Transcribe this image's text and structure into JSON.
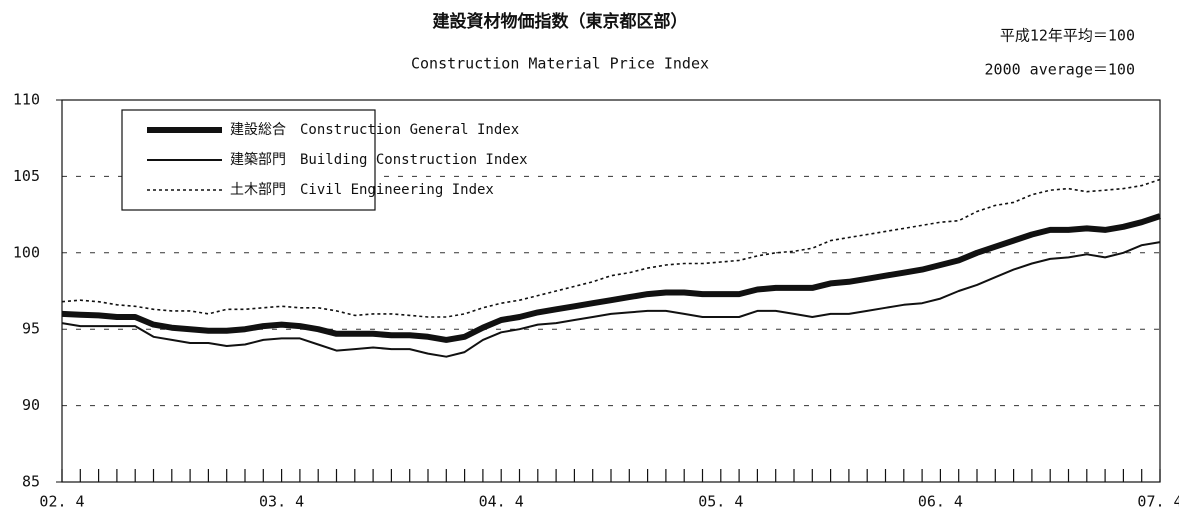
{
  "chart_data": {
    "type": "line",
    "title": "建設資材物価指数（東京都区部）",
    "subtitle": "Construction Material Price Index",
    "annotations": [
      "平成12年平均＝100",
      "2000 average＝100"
    ],
    "categories": [
      "02. 4",
      null,
      null,
      null,
      null,
      null,
      null,
      null,
      null,
      null,
      null,
      null,
      "03. 4",
      null,
      null,
      null,
      null,
      null,
      null,
      null,
      null,
      null,
      null,
      null,
      "04. 4",
      null,
      null,
      null,
      null,
      null,
      null,
      null,
      null,
      null,
      null,
      null,
      "05. 4",
      null,
      null,
      null,
      null,
      null,
      null,
      null,
      null,
      null,
      null,
      null,
      "06. 4",
      null,
      null,
      null,
      null,
      null,
      null,
      null,
      null,
      null,
      null,
      null,
      "07. 4"
    ],
    "series": [
      {
        "name": "建設総合　Construction General Index",
        "color": "#111111",
        "style": "thick",
        "values": [
          96.0,
          95.95,
          95.9,
          95.8,
          95.8,
          95.3,
          95.1,
          95.0,
          94.9,
          94.9,
          95.0,
          95.2,
          95.3,
          95.2,
          95.0,
          94.7,
          94.7,
          94.7,
          94.6,
          94.6,
          94.5,
          94.3,
          94.5,
          95.1,
          95.6,
          95.8,
          96.1,
          96.3,
          96.5,
          96.7,
          96.9,
          97.1,
          97.3,
          97.4,
          97.4,
          97.3,
          97.3,
          97.3,
          97.6,
          97.7,
          97.7,
          97.7,
          98.0,
          98.1,
          98.3,
          98.5,
          98.7,
          98.9,
          99.2,
          99.5,
          100.0,
          100.4,
          100.8,
          101.2,
          101.5,
          101.5,
          101.6,
          101.5,
          101.7,
          102.0,
          102.4
        ]
      },
      {
        "name": "建築部門　Building Construction Index",
        "color": "#111111",
        "style": "thin",
        "values": [
          95.4,
          95.2,
          95.2,
          95.2,
          95.2,
          94.5,
          94.3,
          94.1,
          94.1,
          93.9,
          94.0,
          94.3,
          94.4,
          94.4,
          94.0,
          93.6,
          93.7,
          93.8,
          93.7,
          93.7,
          93.4,
          93.2,
          93.5,
          94.3,
          94.8,
          95.0,
          95.3,
          95.4,
          95.6,
          95.8,
          96.0,
          96.1,
          96.2,
          96.2,
          96.0,
          95.8,
          95.8,
          95.8,
          96.2,
          96.2,
          96.0,
          95.8,
          96.0,
          96.0,
          96.2,
          96.4,
          96.6,
          96.7,
          97.0,
          97.5,
          97.9,
          98.4,
          98.9,
          99.3,
          99.6,
          99.7,
          99.9,
          99.7,
          100.0,
          100.5,
          100.7
        ]
      },
      {
        "name": "土木部門　Civil Engineering Index",
        "color": "#111111",
        "style": "dotted",
        "values": [
          96.8,
          96.9,
          96.8,
          96.6,
          96.5,
          96.3,
          96.2,
          96.2,
          96.0,
          96.3,
          96.3,
          96.4,
          96.5,
          96.4,
          96.4,
          96.2,
          95.9,
          96.0,
          96.0,
          95.9,
          95.8,
          95.8,
          96.0,
          96.4,
          96.7,
          96.9,
          97.2,
          97.5,
          97.8,
          98.1,
          98.5,
          98.7,
          99.0,
          99.2,
          99.3,
          99.3,
          99.4,
          99.5,
          99.8,
          100.0,
          100.1,
          100.3,
          100.8,
          101.0,
          101.2,
          101.4,
          101.6,
          101.8,
          102.0,
          102.1,
          102.7,
          103.1,
          103.3,
          103.8,
          104.1,
          104.2,
          104.0,
          104.1,
          104.2,
          104.4,
          104.8
        ]
      }
    ],
    "ylim": [
      85,
      110
    ],
    "yticks": [
      85,
      90,
      95,
      100,
      105,
      110
    ],
    "grid": true,
    "legend": "upper left"
  }
}
